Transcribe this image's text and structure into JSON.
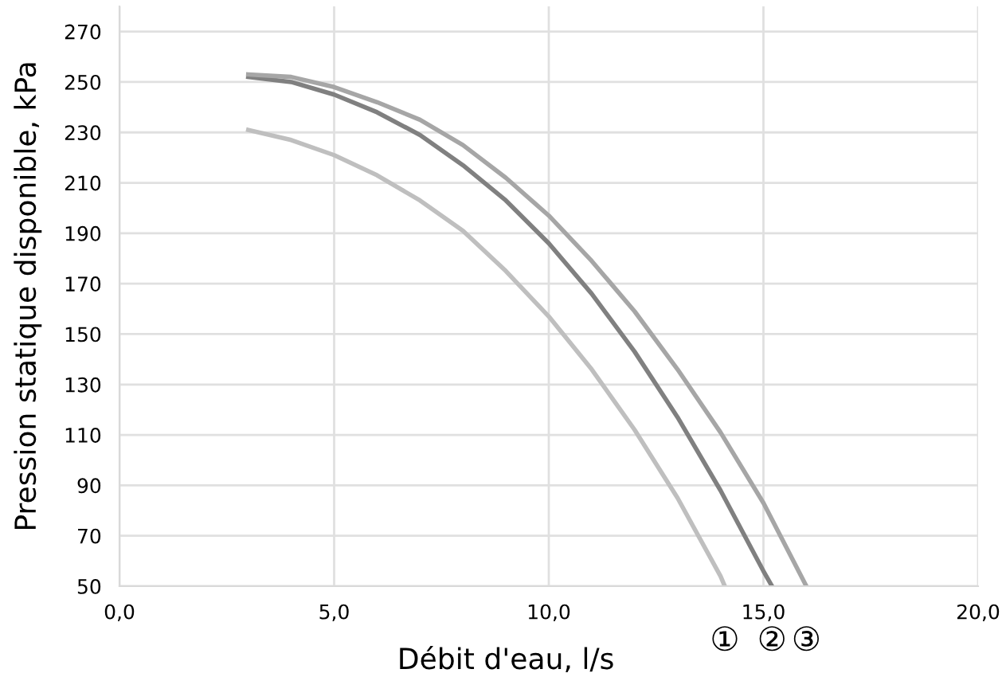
{
  "chart_data": {
    "type": "line",
    "xlabel": "Débit d'eau, l/s",
    "ylabel": "Pression statique disponible, kPa",
    "xlim": [
      0,
      20
    ],
    "xticks": [
      {
        "value": 0,
        "label": "0,0"
      },
      {
        "value": 5,
        "label": "5,0"
      },
      {
        "value": 10,
        "label": "10,0"
      },
      {
        "value": 15,
        "label": "15,0"
      },
      {
        "value": 20,
        "label": "20,0"
      }
    ],
    "ylim": [
      50,
      280
    ],
    "yticks": [
      50,
      70,
      90,
      110,
      130,
      150,
      170,
      190,
      210,
      230,
      250,
      270
    ],
    "grid": true,
    "legend": false,
    "marker": "none",
    "line_style": "solid",
    "series": [
      {
        "name": "①",
        "color": "#bfbfbf",
        "x": [
          3,
          4,
          5,
          6,
          7,
          8,
          9,
          10,
          11,
          12,
          13,
          14,
          14.1
        ],
        "values": [
          231,
          227,
          221,
          213,
          203,
          191,
          175,
          157,
          136,
          112,
          85,
          54,
          50
        ]
      },
      {
        "name": "②",
        "color": "#808080",
        "x": [
          3,
          4,
          5,
          6,
          7,
          8,
          9,
          10,
          11,
          12,
          13,
          14,
          15,
          15.2
        ],
        "values": [
          252,
          250,
          245,
          238,
          229,
          217,
          203,
          186,
          166,
          143,
          117,
          88,
          56,
          50
        ]
      },
      {
        "name": "③",
        "color": "#a6a6a6",
        "x": [
          3,
          4,
          5,
          6,
          7,
          8,
          9,
          10,
          11,
          12,
          13,
          14,
          15,
          16
        ],
        "values": [
          253,
          252,
          248,
          242,
          235,
          225,
          212,
          197,
          179,
          159,
          136,
          111,
          83,
          50
        ]
      }
    ]
  }
}
